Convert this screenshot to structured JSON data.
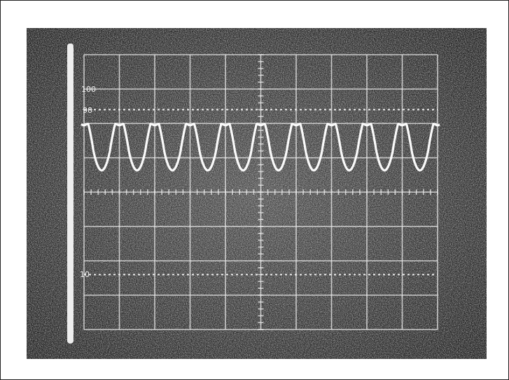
{
  "graticule_labels": {
    "top": "100",
    "upper": "90",
    "lower": "10"
  }
}
